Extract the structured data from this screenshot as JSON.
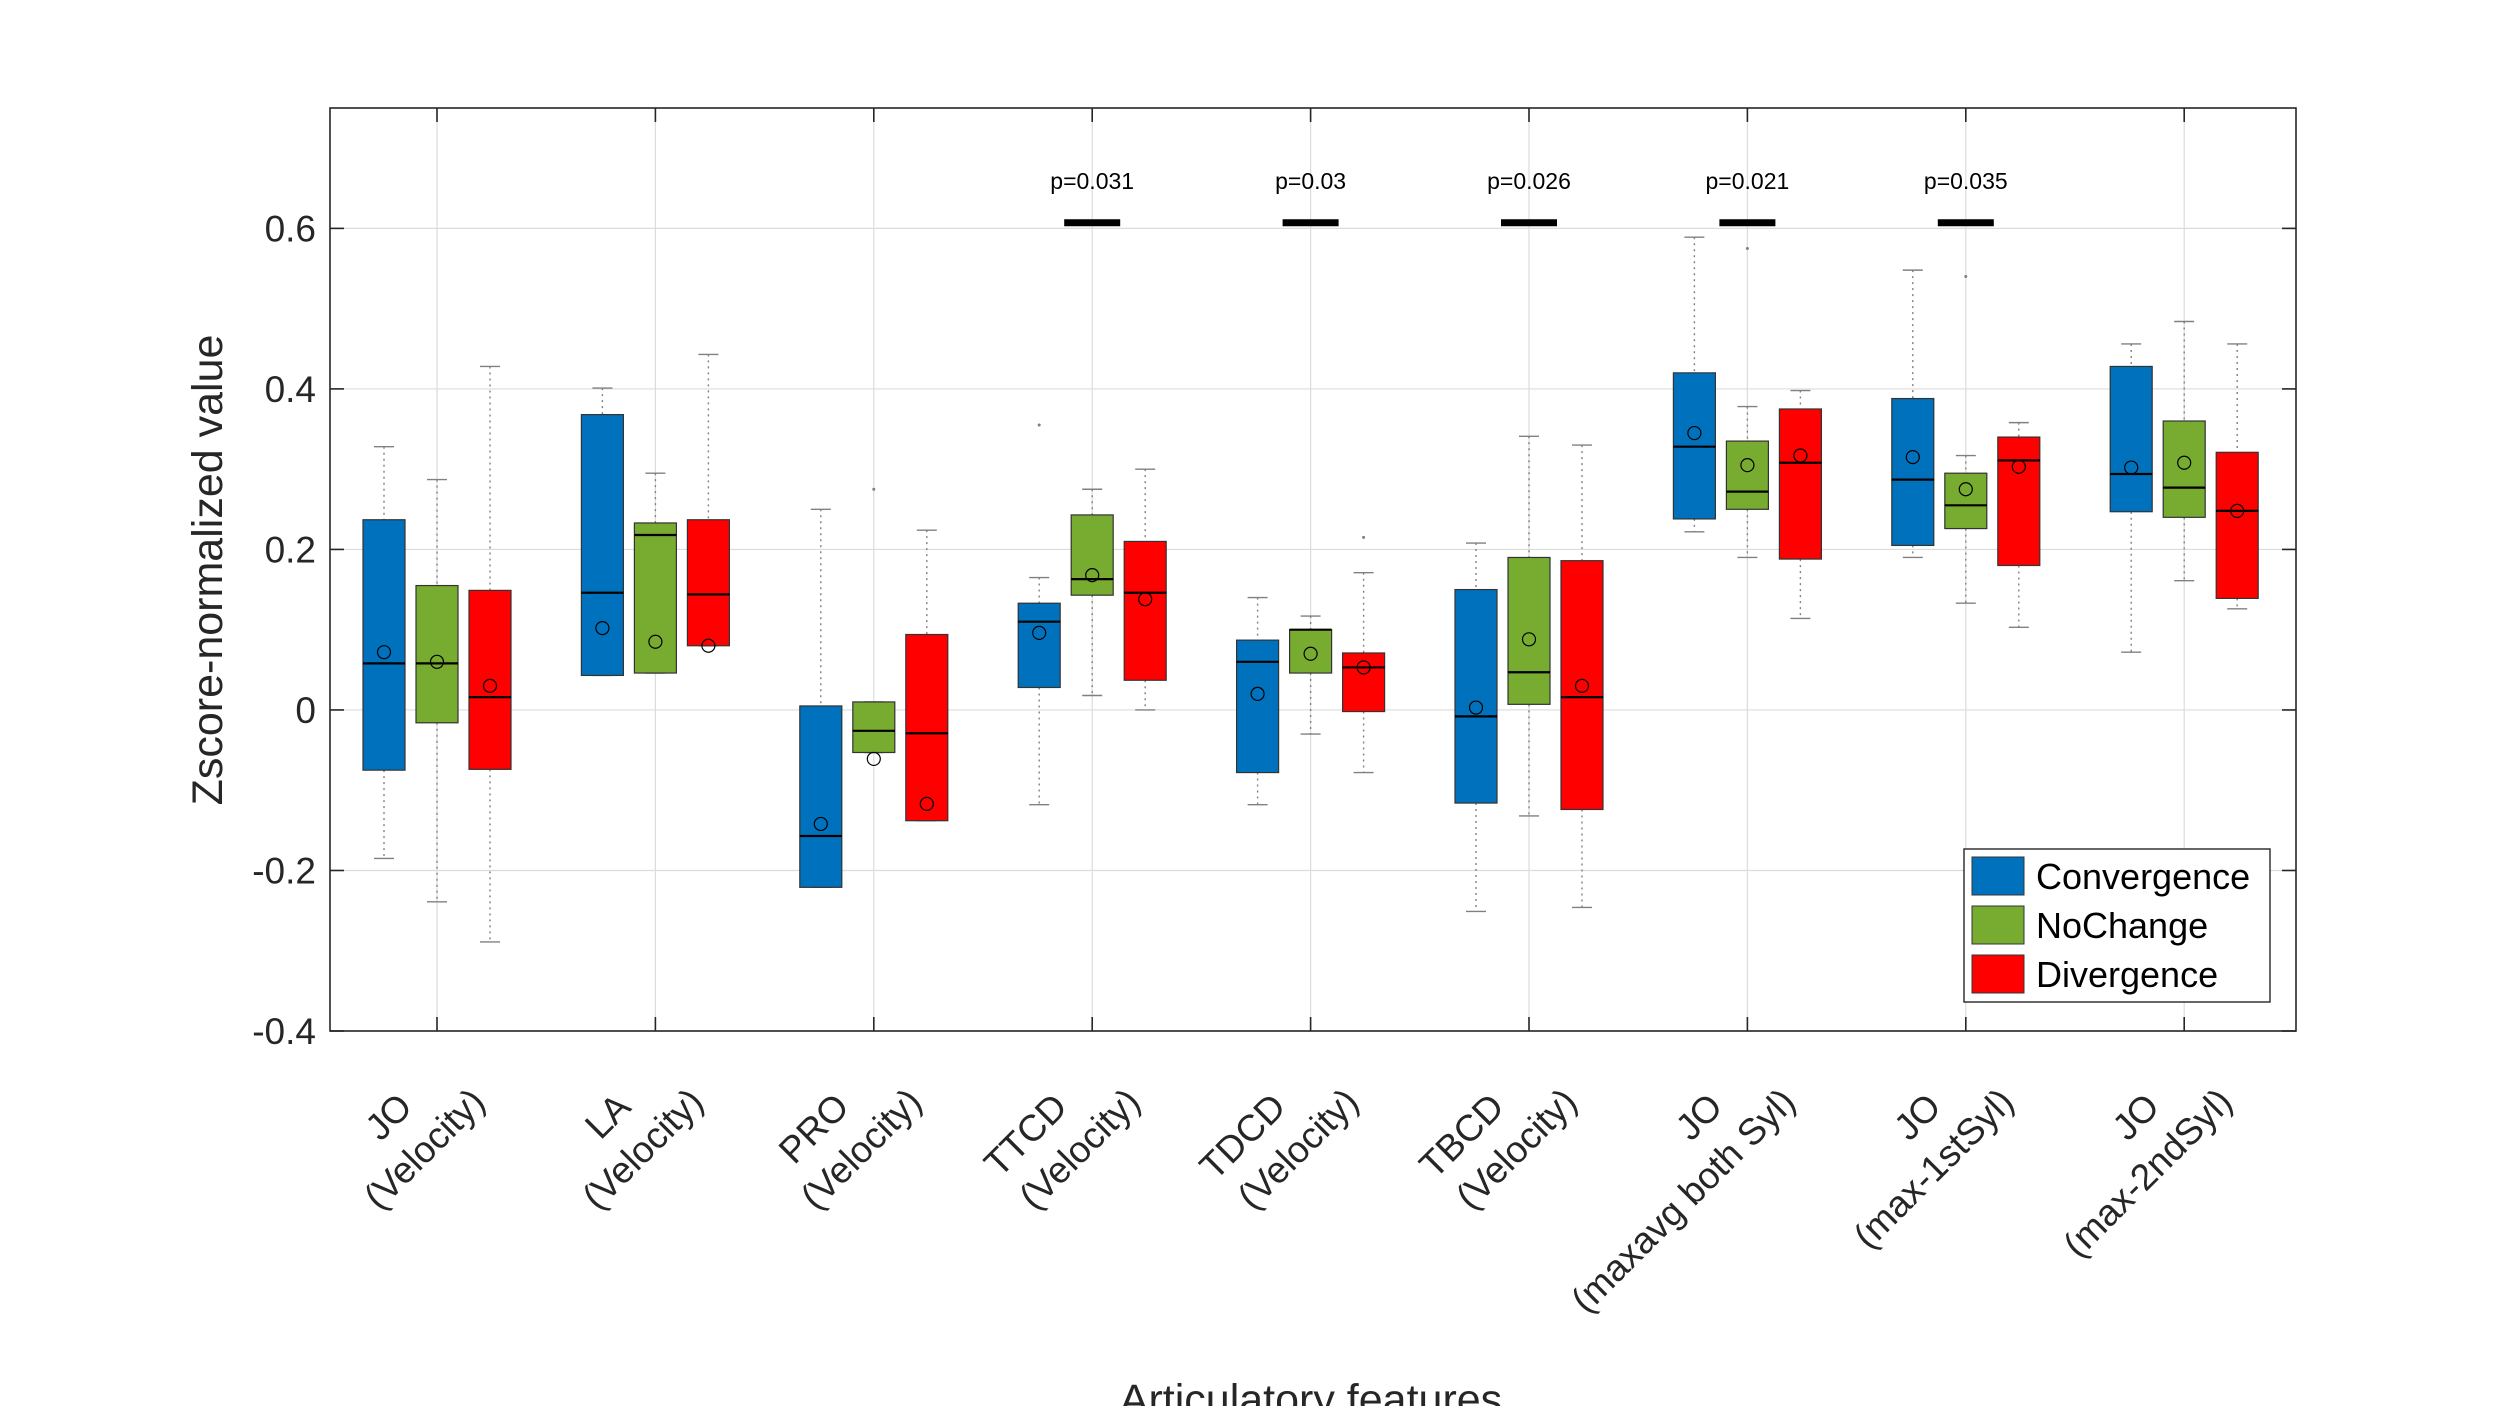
{
  "chart_data": {
    "type": "box",
    "xlabel": "Articulatory features",
    "ylabel": "Zscore-normalized value",
    "ylim": [
      -0.4,
      0.75
    ],
    "yticks": [
      -0.4,
      -0.2,
      0,
      0.2,
      0.4,
      0.6
    ],
    "ytick_labels": [
      "-0.4",
      "-0.2",
      "0",
      "0.2",
      "0.4",
      "0.6"
    ],
    "grid": true,
    "legend_position": "bottom-right",
    "categories": [
      [
        "JO",
        "(Velocity)"
      ],
      [
        "LA",
        "(Velocity)"
      ],
      [
        "PRO",
        "(Velocity)"
      ],
      [
        "TTCD",
        "(Velocity)"
      ],
      [
        "TDCD",
        "(Velocity)"
      ],
      [
        "TBCD",
        "(Velocity)"
      ],
      [
        "JO",
        "(maxavg both Syl)"
      ],
      [
        "JO",
        "(max-1stSyl)"
      ],
      [
        "JO",
        "(max-2ndSyl)"
      ]
    ],
    "series": [
      {
        "name": "Convergence",
        "color": "#0072BD",
        "boxes": [
          {
            "q1": -0.075,
            "median": 0.058,
            "q3": 0.237,
            "whisker_low": -0.185,
            "whisker_high": 0.328,
            "mean": 0.072
          },
          {
            "q1": 0.043,
            "median": 0.146,
            "q3": 0.368,
            "whisker_low": 0.043,
            "whisker_high": 0.401,
            "mean": 0.102
          },
          {
            "q1": -0.221,
            "median": -0.157,
            "q3": 0.005,
            "whisker_low": -0.221,
            "whisker_high": 0.25,
            "mean": -0.142
          },
          {
            "q1": 0.028,
            "median": 0.11,
            "q3": 0.133,
            "whisker_low": -0.118,
            "whisker_high": 0.165,
            "mean": 0.096
          },
          {
            "q1": -0.078,
            "median": 0.06,
            "q3": 0.087,
            "whisker_low": -0.118,
            "whisker_high": 0.14,
            "mean": 0.02
          },
          {
            "q1": -0.116,
            "median": -0.008,
            "q3": 0.15,
            "whisker_low": -0.251,
            "whisker_high": 0.208,
            "mean": 0.003
          },
          {
            "q1": 0.238,
            "median": 0.328,
            "q3": 0.42,
            "whisker_low": 0.222,
            "whisker_high": 0.589,
            "mean": 0.345
          },
          {
            "q1": 0.205,
            "median": 0.287,
            "q3": 0.388,
            "whisker_low": 0.19,
            "whisker_high": 0.548,
            "mean": 0.315
          },
          {
            "q1": 0.247,
            "median": 0.294,
            "q3": 0.428,
            "whisker_low": 0.072,
            "whisker_high": 0.456,
            "mean": 0.302
          }
        ]
      },
      {
        "name": "NoChange",
        "color": "#77AC30",
        "boxes": [
          {
            "q1": -0.016,
            "median": 0.058,
            "q3": 0.155,
            "whisker_low": -0.239,
            "whisker_high": 0.287,
            "mean": 0.06
          },
          {
            "q1": 0.046,
            "median": 0.218,
            "q3": 0.233,
            "whisker_low": 0.046,
            "whisker_high": 0.295,
            "mean": 0.085
          },
          {
            "q1": -0.053,
            "median": -0.026,
            "q3": 0.01,
            "whisker_low": -0.053,
            "whisker_high": 0.01,
            "mean": -0.061
          },
          {
            "q1": 0.143,
            "median": 0.163,
            "q3": 0.243,
            "whisker_low": 0.018,
            "whisker_high": 0.275,
            "mean": 0.168
          },
          {
            "q1": 0.046,
            "median": 0.1,
            "q3": 0.1,
            "whisker_low": -0.03,
            "whisker_high": 0.117,
            "mean": 0.07
          },
          {
            "q1": 0.007,
            "median": 0.047,
            "q3": 0.19,
            "whisker_low": -0.132,
            "whisker_high": 0.341,
            "mean": 0.088
          },
          {
            "q1": 0.25,
            "median": 0.272,
            "q3": 0.335,
            "whisker_low": 0.19,
            "whisker_high": 0.378,
            "mean": 0.305
          },
          {
            "q1": 0.226,
            "median": 0.255,
            "q3": 0.295,
            "whisker_low": 0.133,
            "whisker_high": 0.317,
            "mean": 0.275
          },
          {
            "q1": 0.24,
            "median": 0.277,
            "q3": 0.36,
            "whisker_low": 0.161,
            "whisker_high": 0.484,
            "mean": 0.308
          }
        ]
      },
      {
        "name": "Divergence",
        "color": "#FF0000",
        "boxes": [
          {
            "q1": -0.074,
            "median": 0.016,
            "q3": 0.149,
            "whisker_low": -0.289,
            "whisker_high": 0.428,
            "mean": 0.03
          },
          {
            "q1": 0.08,
            "median": 0.144,
            "q3": 0.237,
            "whisker_low": 0.08,
            "whisker_high": 0.443,
            "mean": 0.08
          },
          {
            "q1": -0.138,
            "median": -0.029,
            "q3": 0.094,
            "whisker_low": -0.138,
            "whisker_high": 0.224,
            "mean": -0.117
          },
          {
            "q1": 0.037,
            "median": 0.146,
            "q3": 0.21,
            "whisker_low": 0.0,
            "whisker_high": 0.3,
            "mean": 0.138
          },
          {
            "q1": -0.002,
            "median": 0.053,
            "q3": 0.071,
            "whisker_low": -0.078,
            "whisker_high": 0.171,
            "mean": 0.053
          },
          {
            "q1": -0.124,
            "median": 0.016,
            "q3": 0.186,
            "whisker_low": -0.246,
            "whisker_high": 0.33,
            "mean": 0.03
          },
          {
            "q1": 0.188,
            "median": 0.308,
            "q3": 0.375,
            "whisker_low": 0.114,
            "whisker_high": 0.398,
            "mean": 0.317
          },
          {
            "q1": 0.18,
            "median": 0.311,
            "q3": 0.34,
            "whisker_low": 0.103,
            "whisker_high": 0.358,
            "mean": 0.303
          },
          {
            "q1": 0.139,
            "median": 0.248,
            "q3": 0.321,
            "whisker_low": 0.126,
            "whisker_high": 0.456,
            "mean": 0.248
          }
        ]
      }
    ],
    "outliers": [
      {
        "category": 2,
        "series": 1,
        "value": 0.275
      },
      {
        "category": 3,
        "series": 0,
        "value": 0.355
      },
      {
        "category": 4,
        "series": 2,
        "value": 0.215
      },
      {
        "category": 6,
        "series": 1,
        "value": 0.575
      },
      {
        "category": 7,
        "series": 1,
        "value": 0.54
      }
    ],
    "significance": [
      {
        "category": 3,
        "label": "p=0.031",
        "value": 0.607
      },
      {
        "category": 4,
        "label": "p=0.03",
        "value": 0.607
      },
      {
        "category": 5,
        "label": "p=0.026",
        "value": 0.607
      },
      {
        "category": 6,
        "label": "p=0.021",
        "value": 0.607
      },
      {
        "category": 7,
        "label": "p=0.035",
        "value": 0.607
      }
    ]
  }
}
